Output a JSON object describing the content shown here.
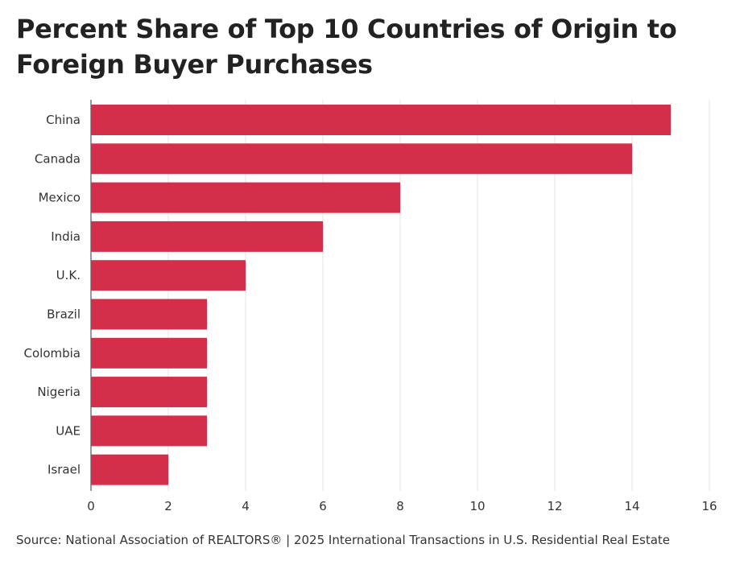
{
  "title": "Percent Share of Top 10 Countries of Origin to Foreign Buyer Purchases",
  "source": "Source: National Association of REALTORS® | 2025 International Transactions in U.S. Residential Real Estate",
  "colors": {
    "bar": "#d42f4a",
    "grid": "#e6e6e6",
    "axis": "#555555",
    "text": "#333333"
  },
  "chart_data": {
    "type": "bar",
    "orientation": "horizontal",
    "categories": [
      "China",
      "Canada",
      "Mexico",
      "India",
      "U.K.",
      "Brazil",
      "Colombia",
      "Nigeria",
      "UAE",
      "Israel"
    ],
    "values": [
      15,
      14,
      8,
      6,
      4,
      3,
      3,
      3,
      3,
      2
    ],
    "xlim": [
      0,
      16
    ],
    "xticks": [
      "0",
      "2",
      "4",
      "6",
      "8",
      "10",
      "12",
      "14",
      "16"
    ],
    "xlabel": "",
    "ylabel": "",
    "grid": "vertical",
    "legend": "none"
  }
}
